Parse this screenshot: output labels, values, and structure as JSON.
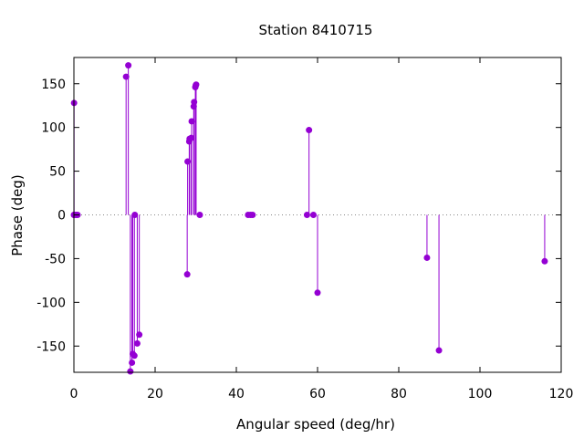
{
  "chart_data": {
    "type": "scatter",
    "style": "impulses-with-points",
    "title": "Station 8410715",
    "xlabel": "Angular speed (deg/hr)",
    "ylabel": "Phase (deg)",
    "xlim": [
      0,
      120
    ],
    "ylim": [
      -180,
      180
    ],
    "xticks": [
      0,
      20,
      40,
      60,
      80,
      100,
      120
    ],
    "yticks": [
      -150,
      -100,
      -50,
      0,
      50,
      100,
      150
    ],
    "zero_line": "dotted",
    "grid": false,
    "color": "#9400d3",
    "series": [
      {
        "x": [
          0.0,
          0.04,
          0.08,
          0.5,
          0.9,
          12.85,
          13.4,
          13.9,
          14.3,
          14.5,
          14.9,
          15.0,
          15.6,
          16.1,
          27.9,
          28.0,
          28.4,
          28.5,
          28.9,
          29.0,
          29.5,
          29.6,
          29.9,
          30.0,
          30.1,
          31.0,
          42.9,
          43.5,
          44.0,
          57.4,
          57.9,
          58.98,
          60.0,
          86.95,
          89.9,
          115.94
        ],
        "y": [
          0,
          128,
          0,
          0,
          0,
          158,
          171,
          -179,
          -169,
          -159,
          -161,
          0,
          -147,
          -137,
          -68,
          61,
          84,
          87,
          88,
          107,
          124,
          129,
          146,
          148,
          149,
          0,
          0,
          0,
          0,
          0,
          97,
          0,
          -89,
          -49,
          -155,
          -53
        ]
      }
    ]
  }
}
